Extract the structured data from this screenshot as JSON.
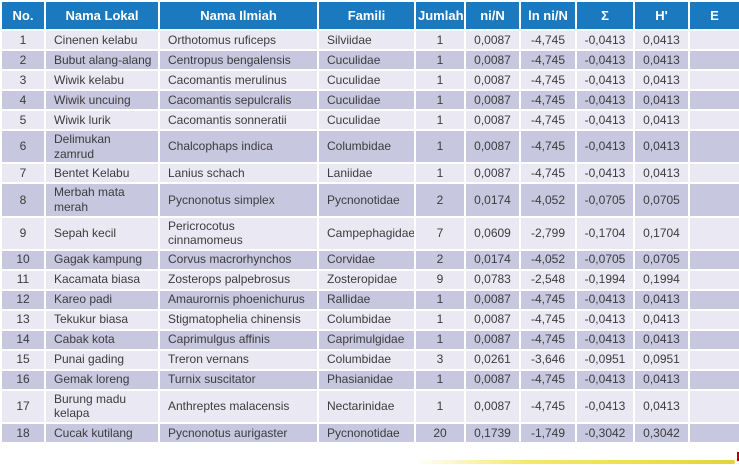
{
  "table": {
    "columns": [
      {
        "key": "no",
        "label": "No."
      },
      {
        "key": "lokal",
        "label": "Nama Lokal"
      },
      {
        "key": "ilmiah",
        "label": "Nama Ilmiah"
      },
      {
        "key": "famili",
        "label": "Famili"
      },
      {
        "key": "jumlah",
        "label": "Jumlah"
      },
      {
        "key": "nin",
        "label": "ni/N"
      },
      {
        "key": "lnnin",
        "label": "ln ni/N"
      },
      {
        "key": "sigma",
        "label": "Σ"
      },
      {
        "key": "h",
        "label": "H'"
      },
      {
        "key": "e",
        "label": "E"
      }
    ],
    "rows": [
      [
        "1",
        "Cinenen kelabu",
        "Orthotomus ruficeps",
        "Silviidae",
        "1",
        "0,0087",
        "-4,745",
        "-0,0413",
        "0,0413",
        ""
      ],
      [
        "2",
        "Bubut alang-alang",
        "Centropus bengalensis",
        "Cuculidae",
        "1",
        "0,0087",
        "-4,745",
        "-0,0413",
        "0,0413",
        ""
      ],
      [
        "3",
        "Wiwik kelabu",
        "Cacomantis merulinus",
        "Cuculidae",
        "1",
        "0,0087",
        "-4,745",
        "-0,0413",
        "0,0413",
        ""
      ],
      [
        "4",
        "Wiwik uncuing",
        "Cacomantis sepulcralis",
        "Cuculidae",
        "1",
        "0,0087",
        "-4,745",
        "-0,0413",
        "0,0413",
        ""
      ],
      [
        "5",
        "Wiwik lurik",
        "Cacomantis sonneratii",
        "Cuculidae",
        "1",
        "0,0087",
        "-4,745",
        "-0,0413",
        "0,0413",
        ""
      ],
      [
        "6",
        "Delimukan zamrud",
        "Chalcophaps indica",
        "Columbidae",
        "1",
        "0,0087",
        "-4,745",
        "-0,0413",
        "0,0413",
        ""
      ],
      [
        "7",
        "Bentet Kelabu",
        "Lanius schach",
        "Laniidae",
        "1",
        "0,0087",
        "-4,745",
        "-0,0413",
        "0,0413",
        ""
      ],
      [
        "8",
        "Merbah mata merah",
        "Pycnonotus simplex",
        "Pycnonotidae",
        "2",
        "0,0174",
        "-4,052",
        "-0,0705",
        "0,0705",
        ""
      ],
      [
        "9",
        "Sepah kecil",
        "Pericrocotus cinnamomeus",
        "Campephagidae",
        "7",
        "0,0609",
        "-2,799",
        "-0,1704",
        "0,1704",
        ""
      ],
      [
        "10",
        "Gagak kampung",
        "Corvus macrorhynchos",
        "Corvidae",
        "2",
        "0,0174",
        "-4,052",
        "-0,0705",
        "0,0705",
        ""
      ],
      [
        "11",
        "Kacamata biasa",
        "Zosterops palpebrosus",
        "Zosteropidae",
        "9",
        "0,0783",
        "-2,548",
        "-0,1994",
        "0,1994",
        ""
      ],
      [
        "12",
        "Kareo padi",
        "Amaurornis phoenichurus",
        "Rallidae",
        "1",
        "0,0087",
        "-4,745",
        "-0,0413",
        "0,0413",
        ""
      ],
      [
        "13",
        "Tekukur biasa",
        "Stigmatophelia chinensis",
        "Columbidae",
        "1",
        "0,0087",
        "-4,745",
        "-0,0413",
        "0,0413",
        ""
      ],
      [
        "14",
        "Cabak kota",
        "Caprimulgus affinis",
        "Caprimulgidae",
        "1",
        "0,0087",
        "-4,745",
        "-0,0413",
        "0,0413",
        ""
      ],
      [
        "15",
        "Punai gading",
        "Treron vernans",
        "Columbidae",
        "3",
        "0,0261",
        "-3,646",
        "-0,0951",
        "0,0951",
        ""
      ],
      [
        "16",
        "Gemak loreng",
        "Turnix suscitator",
        "Phasianidae",
        "1",
        "0,0087",
        "-4,745",
        "-0,0413",
        "0,0413",
        ""
      ],
      [
        "17",
        "Burung madu kelapa",
        "Anthreptes malacensis",
        "Nectarinidae",
        "1",
        "0,0087",
        "-4,745",
        "-0,0413",
        "0,0413",
        ""
      ],
      [
        "18",
        "Cucak kutilang",
        "Pycnonotus aurigaster",
        "Pycnonotidae",
        "20",
        "0,1739",
        "-1,749",
        "-0,3042",
        "0,3042",
        ""
      ]
    ]
  },
  "colors": {
    "header_bg": "#1B79BF",
    "header_text": "#FFFFFF",
    "row_light": "#E9E8F3",
    "row_dark": "#C8C7E0",
    "body_text": "#3C3C3C",
    "separator": "#FFFFFF",
    "accent_yellow": "#EFDF4A",
    "accent_red": "#C00000"
  }
}
